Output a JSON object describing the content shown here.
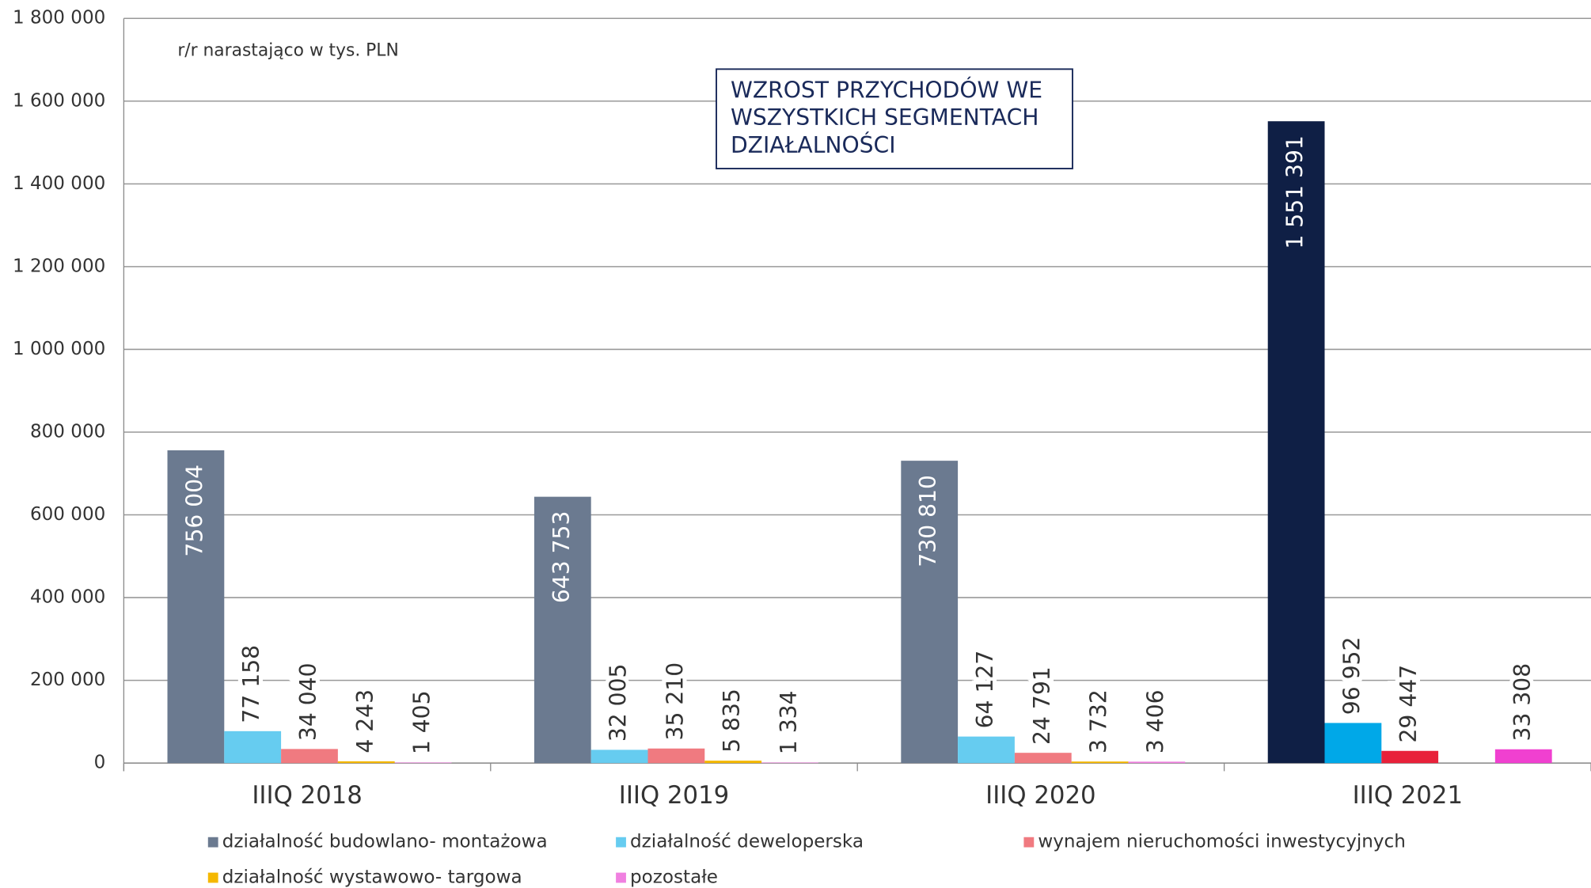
{
  "chart_data": {
    "type": "bar",
    "subtitle": "r/r narastająco w tys. PLN",
    "annotation": [
      "WZROST PRZYCHODÓW WE",
      "WSZYSTKICH SEGMENTACH",
      "DZIAŁALNOŚCI"
    ],
    "categories": [
      "IIIQ 2018",
      "IIIQ 2019",
      "IIIQ 2020",
      "IIIQ 2021"
    ],
    "series": [
      {
        "name": "działalność budowlano- montażowa",
        "color": "#6b7a90",
        "colors": [
          "#6b7a90",
          "#6b7a90",
          "#6b7a90",
          "#0f1f45"
        ],
        "values": [
          756004,
          643753,
          730810,
          1551391
        ],
        "value_labels": [
          "756 004",
          "643 753",
          "730 810",
          "1 551 391"
        ]
      },
      {
        "name": "działalność deweloperska",
        "color": "#66ccf0",
        "colors": [
          "#66ccf0",
          "#66ccf0",
          "#66ccf0",
          "#00a8e8"
        ],
        "values": [
          77158,
          32005,
          64127,
          96952
        ],
        "value_labels": [
          "77 158",
          "32 005",
          "64 127",
          "96 952"
        ]
      },
      {
        "name": "wynajem nieruchomości inwestycyjnych",
        "color": "#f07a80",
        "colors": [
          "#f07a80",
          "#f07a80",
          "#f07a80",
          "#e8213a"
        ],
        "values": [
          34040,
          35210,
          24791,
          29447
        ],
        "value_labels": [
          "34 040",
          "35 210",
          "24 791",
          "29 447"
        ]
      },
      {
        "name": "działalność wystawowo- targowa",
        "color": "#f5b800",
        "colors": [
          "#f5b800",
          "#f5b800",
          "#f5b800",
          "#f5b800"
        ],
        "values": [
          4243,
          5835,
          3732,
          null
        ],
        "value_labels": [
          "4 243",
          "5 835",
          "3 732",
          null
        ]
      },
      {
        "name": "pozostałe",
        "color": "#f080e0",
        "colors": [
          "#f080e0",
          "#f080e0",
          "#f080e0",
          "#f040d0"
        ],
        "values": [
          1405,
          1334,
          3406,
          33308
        ],
        "value_labels": [
          "1 405",
          "1 334",
          "3 406",
          "33 308"
        ]
      }
    ],
    "ylim": [
      0,
      1800000
    ],
    "yticks": [
      0,
      {
        "value": 200000,
        "label": "200 000"
      },
      {
        "value": 400000,
        "label": "400 000"
      },
      {
        "value": 600000,
        "label": "600 000"
      },
      {
        "value": 800000,
        "label": "800 000"
      },
      {
        "value": 1000000,
        "label": "1 000 000"
      },
      {
        "value": 1200000,
        "label": "1 200 000"
      },
      {
        "value": 1400000,
        "label": "1 400 000"
      },
      {
        "value": 1600000,
        "label": "1 600 000"
      },
      {
        "value": 1800000,
        "label": "1 800 000"
      }
    ],
    "grid": true
  }
}
